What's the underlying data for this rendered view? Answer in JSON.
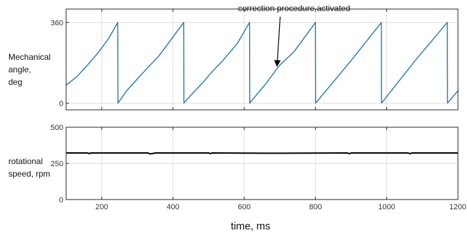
{
  "chart_data": [
    {
      "type": "line",
      "ylabel_lines": [
        "Mechanical",
        "angle,",
        "deg"
      ],
      "xlim": [
        100,
        1200
      ],
      "ylim": [
        -30,
        420
      ],
      "yticks": [
        0,
        360
      ],
      "xticks": [
        200,
        400,
        600,
        800,
        1000,
        1200
      ],
      "grid": true,
      "series": [
        {
          "color": "#1f77b4",
          "x": [
            100,
            130,
            160,
            190,
            220,
            245,
            245.5,
            270,
            300,
            330,
            360,
            400,
            430,
            430.5,
            450,
            480,
            510,
            540,
            580,
            615,
            615.5,
            640,
            660,
            690,
            700,
            740,
            800,
            800.5,
            900,
            985,
            985.5,
            1080,
            1170,
            1170.5,
            1200
          ],
          "y": [
            80,
            118,
            170,
            225,
            290,
            360,
            0,
            55,
            108,
            160,
            210,
            295,
            360,
            0,
            35,
            85,
            140,
            190,
            265,
            360,
            0,
            48,
            85,
            150,
            170,
            230,
            360,
            0,
            190,
            360,
            0,
            190,
            360,
            0,
            55
          ]
        }
      ],
      "annotation": {
        "text": "correction procedure activated",
        "text_x": 740,
        "text_y": 410,
        "arrow_to_x": 692,
        "arrow_to_y": 165
      }
    },
    {
      "type": "line",
      "ylabel_lines": [
        "rotational",
        "speed, rpm"
      ],
      "xlabel": "time, ms",
      "xlim": [
        100,
        1200
      ],
      "ylim": [
        0,
        500
      ],
      "yticks": [
        0,
        250,
        500
      ],
      "xticks": [
        200,
        400,
        600,
        800,
        1000,
        1200
      ],
      "xticklabels": [
        "200",
        "400",
        "600",
        "800",
        "1000",
        "1200"
      ],
      "grid": true,
      "series": [
        {
          "color": "#000000",
          "x": [
            100,
            160,
            165,
            170,
            330,
            335,
            345,
            350,
            500,
            505,
            510,
            700,
            890,
            895,
            900,
            1060,
            1065,
            1070,
            1200
          ],
          "y": [
            322,
            322,
            318,
            322,
            322,
            316,
            319,
            322,
            322,
            318,
            322,
            320,
            322,
            317,
            322,
            322,
            317,
            322,
            322
          ]
        }
      ]
    }
  ]
}
